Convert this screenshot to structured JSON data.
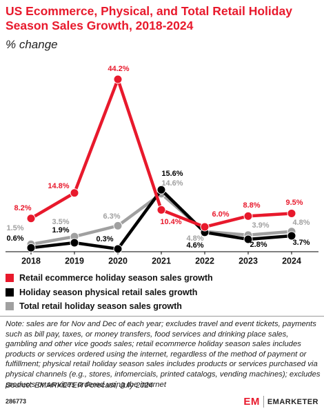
{
  "chart_data": {
    "type": "line",
    "title": "US Ecommerce, Physical, and Total Retail Holiday Season Sales Growth, 2018-2024",
    "subtitle": "% change",
    "categories": [
      "2018",
      "2019",
      "2020",
      "2021",
      "2022",
      "2023",
      "2024"
    ],
    "series": [
      {
        "name": "Retail ecommerce holiday season sales growth",
        "color": "#e8192c",
        "values": [
          8.2,
          14.8,
          44.2,
          10.4,
          6.0,
          8.8,
          9.5
        ],
        "value_labels": [
          "8.2%",
          "14.8%",
          "44.2%",
          "10.4%",
          "6.0%",
          "8.8%",
          "9.5%"
        ]
      },
      {
        "name": "Holiday season physical retail sales growth",
        "color": "#000000",
        "values": [
          0.6,
          1.9,
          0.3,
          15.6,
          4.6,
          2.8,
          3.7
        ],
        "value_labels": [
          "0.6%",
          "1.9%",
          "0.3%",
          "15.6%",
          "4.6%",
          "2.8%",
          "3.7%"
        ]
      },
      {
        "name": "Total retail holiday season sales growth",
        "color": "#a0a0a0",
        "values": [
          1.5,
          3.5,
          6.3,
          14.6,
          4.8,
          3.9,
          4.8
        ],
        "value_labels": [
          "1.5%",
          "3.5%",
          "6.3%",
          "14.6%",
          "4.8%",
          "3.9%",
          "4.8%"
        ]
      }
    ],
    "note": "Note: sales are for Nov and Dec of each year; excludes travel and event tickets, payments such as bill pay, taxes, or money transfers, food services and drinking place sales, gambling and other vice goods sales; retail ecommerce holiday season sales includes products or services ordered using the internet, regardless of the method of payment or fulfillment; physical retail holiday season sales includes products or services purchased via physical channels (e.g., stores, infomercials, printed catalogs, vending machines); excludes products or services ordered using the internet",
    "source": "Source: EMARKETER Forecast, July 2024",
    "chart_id": "286773",
    "brand": "EMARKETER"
  }
}
